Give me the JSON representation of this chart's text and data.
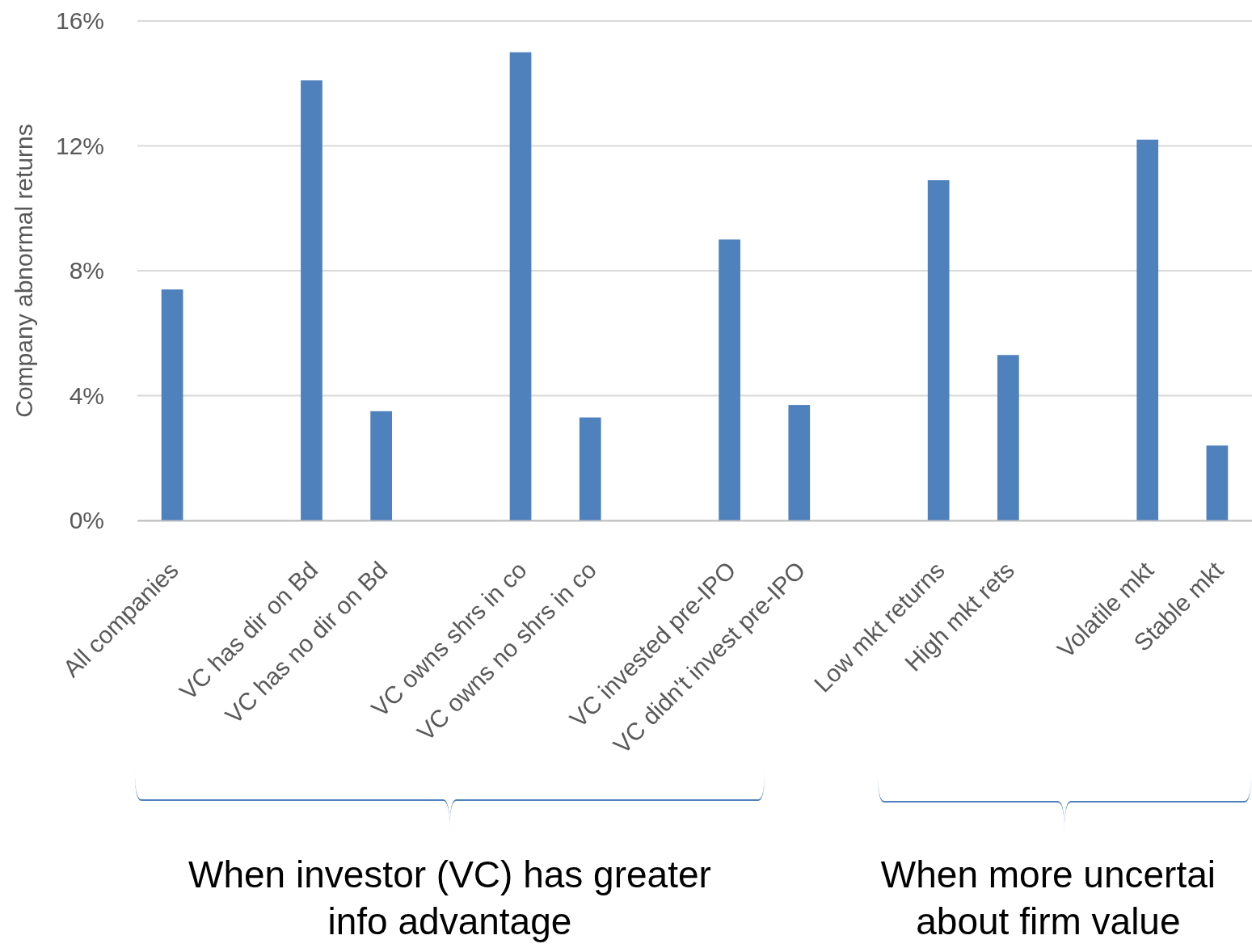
{
  "chart_data": {
    "type": "bar",
    "ylabel": "Company abnormal returns",
    "categories": [
      "All companies",
      null,
      "VC has dir on Bd",
      "VC has no dir on Bd",
      null,
      "VC owns shrs in co",
      "VC owns no shrs in co",
      null,
      "VC invested pre-IPO",
      "VC didn't invest pre-IPO",
      null,
      "Low mkt returns",
      "High mkt rets",
      null,
      "Volatile mkt",
      "Stable mkt"
    ],
    "values": [
      7.4,
      null,
      14.1,
      3.5,
      null,
      15.0,
      3.3,
      null,
      9.0,
      3.7,
      null,
      10.9,
      5.3,
      null,
      12.2,
      2.4
    ],
    "color": "#4f81bd",
    "ylim": [
      0,
      16
    ],
    "yticks": [
      {
        "value": 0,
        "label": "0%"
      },
      {
        "value": 4,
        "label": "4%"
      },
      {
        "value": 8,
        "label": "8%"
      },
      {
        "value": 12,
        "label": "12%"
      },
      {
        "value": 16,
        "label": "16%"
      }
    ],
    "grid": "y",
    "annotations": [
      "When investor (VC) has greater\ninfo advantage",
      "When more uncertai\nabout firm value"
    ]
  }
}
